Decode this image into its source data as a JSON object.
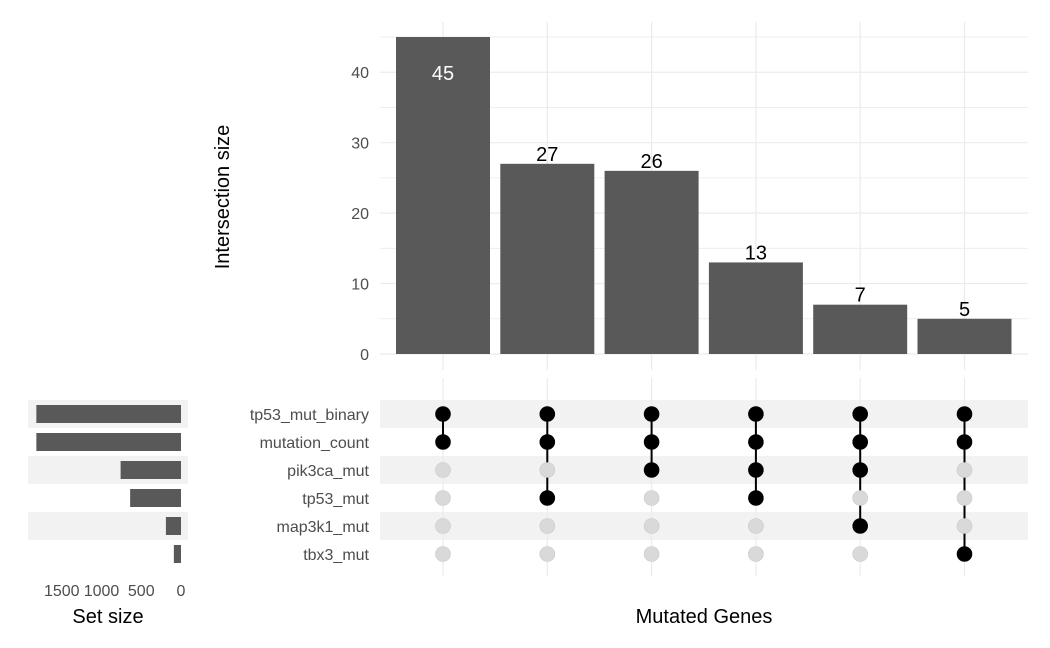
{
  "chart_data": {
    "type": "bar",
    "title": "",
    "xlabel": "Mutated Genes",
    "ylabel": "Intersection size",
    "ylim": [
      0,
      45
    ],
    "yticks": [
      0,
      10,
      20,
      30,
      40
    ],
    "values": [
      45,
      27,
      26,
      13,
      7,
      5
    ],
    "sets": [
      "tp53_mut_binary",
      "mutation_count",
      "pik3ca_mut",
      "tp53_mut",
      "map3k1_mut",
      "tbx3_mut"
    ],
    "membership": [
      [
        1,
        1,
        0,
        0,
        0,
        0
      ],
      [
        1,
        1,
        0,
        1,
        0,
        0
      ],
      [
        1,
        1,
        1,
        0,
        0,
        0
      ],
      [
        1,
        1,
        1,
        1,
        0,
        0
      ],
      [
        1,
        1,
        1,
        0,
        1,
        0
      ],
      [
        1,
        1,
        0,
        0,
        0,
        1
      ]
    ],
    "set_size": {
      "xlabel": "Set size",
      "values": [
        1820,
        1820,
        760,
        640,
        190,
        90
      ],
      "xlim": [
        0,
        1900
      ],
      "ticks": [
        1500,
        1000,
        500,
        0
      ],
      "tick_labels": [
        "1500",
        "1000",
        "500",
        "0"
      ]
    },
    "colors": {
      "bar": "#595959",
      "dot_on": "#000000",
      "dot_off": "#d9d9d9",
      "stripe": "#f2f2f2",
      "grid": "#ebebeb",
      "label_inside": "#ffffff",
      "label_outside": "#000000"
    }
  }
}
